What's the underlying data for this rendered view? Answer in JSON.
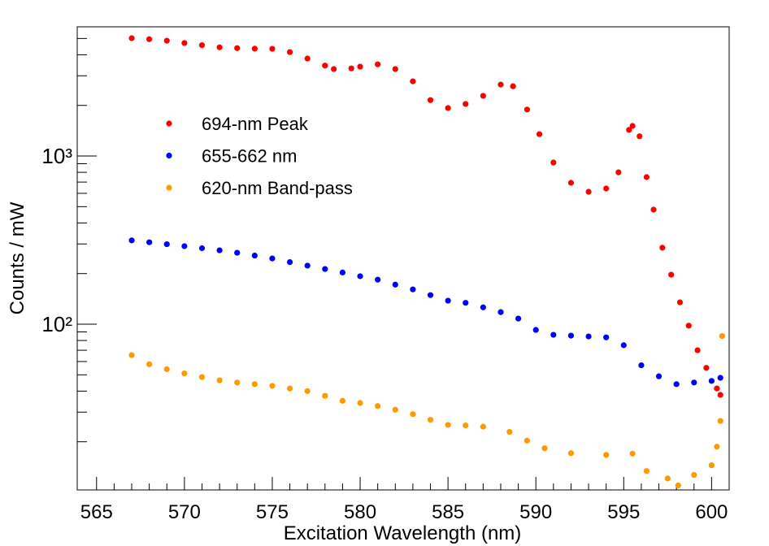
{
  "chart_data": {
    "type": "scatter",
    "log_y": true,
    "xlabel": "Excitation Wavelength (nm)",
    "ylabel": "Counts / mW",
    "xlim": [
      563.9,
      601.0
    ],
    "ylim": [
      10.34,
      5866
    ],
    "xticks": [
      565,
      570,
      575,
      580,
      585,
      590,
      595,
      600
    ],
    "xticks_minor": [
      566,
      567,
      568,
      569,
      571,
      572,
      573,
      574,
      576,
      577,
      578,
      579,
      581,
      582,
      583,
      584,
      586,
      587,
      588,
      589,
      591,
      592,
      593,
      594,
      596,
      597,
      598,
      599,
      601
    ],
    "yticks": [
      {
        "value": 100,
        "label": "10²"
      },
      {
        "value": 1000,
        "label": "10³"
      }
    ],
    "yticks_minor": [
      20,
      30,
      40,
      50,
      60,
      70,
      80,
      90,
      200,
      300,
      400,
      500,
      600,
      700,
      800,
      900,
      2000,
      3000,
      4000,
      5000
    ],
    "series": [
      {
        "name": "694-nm Peak",
        "color": "#ff0000",
        "x": [
          567,
          568,
          569,
          570,
          571,
          572,
          573,
          574,
          575,
          576,
          577,
          578,
          578.5,
          579.5,
          580,
          581,
          582,
          583,
          584,
          585,
          586,
          587,
          588,
          588.7,
          589.5,
          590.2,
          591,
          592,
          593,
          594,
          594.7,
          595.3,
          595.5,
          595.9,
          596.3,
          596.7,
          597.2,
          597.7,
          598.2,
          598.7,
          599.2,
          599.7,
          600.3,
          600.5
        ],
        "values": [
          5020,
          4950,
          4850,
          4700,
          4560,
          4430,
          4380,
          4350,
          4340,
          4150,
          3800,
          3450,
          3290,
          3320,
          3400,
          3510,
          3290,
          2780,
          2150,
          1930,
          2040,
          2280,
          2660,
          2600,
          1890,
          1350,
          915,
          693,
          613,
          641,
          800,
          1430,
          1510,
          1310,
          749,
          480,
          285,
          197,
          135,
          98,
          70,
          55,
          41.5,
          38
        ]
      },
      {
        "name": "655-662 nm",
        "color": "#0000ff",
        "x": [
          567,
          568,
          569,
          570,
          571,
          572,
          573,
          574,
          575,
          576,
          577,
          578,
          579,
          580,
          581,
          582,
          583,
          584,
          585,
          586,
          587,
          588,
          589,
          590,
          591,
          592,
          593,
          594,
          595,
          596,
          597,
          598,
          599,
          600,
          600.5
        ],
        "values": [
          315,
          307,
          299,
          291,
          283,
          275,
          266,
          256,
          246,
          234,
          223,
          213,
          203,
          193,
          184,
          172,
          161,
          149,
          138,
          134,
          126,
          118,
          108,
          92.5,
          86.5,
          85.5,
          84.6,
          83.5,
          75,
          57,
          49,
          44,
          45,
          46,
          48
        ]
      },
      {
        "name": "620-nm Band-pass",
        "color": "#ff9900",
        "x": [
          567,
          568,
          569,
          570,
          571,
          572,
          573,
          574,
          575,
          576,
          577,
          578,
          579,
          580,
          581,
          582,
          583,
          584,
          585,
          586,
          587,
          588.5,
          589.5,
          590.5,
          592,
          594,
          595.5,
          596.3,
          597.5,
          598.1,
          599,
          600,
          600.3,
          600.5,
          600.6
        ],
        "values": [
          65.5,
          57.8,
          54,
          51,
          48.5,
          46.4,
          45,
          44,
          43,
          41.5,
          40,
          37.5,
          35,
          34,
          32.6,
          31,
          29.2,
          27,
          25.2,
          25,
          24.6,
          22.9,
          20.3,
          18.3,
          17.1,
          16.7,
          17,
          13.4,
          12.1,
          11.0,
          12.7,
          14.5,
          18.7,
          26.6,
          85
        ]
      }
    ]
  }
}
